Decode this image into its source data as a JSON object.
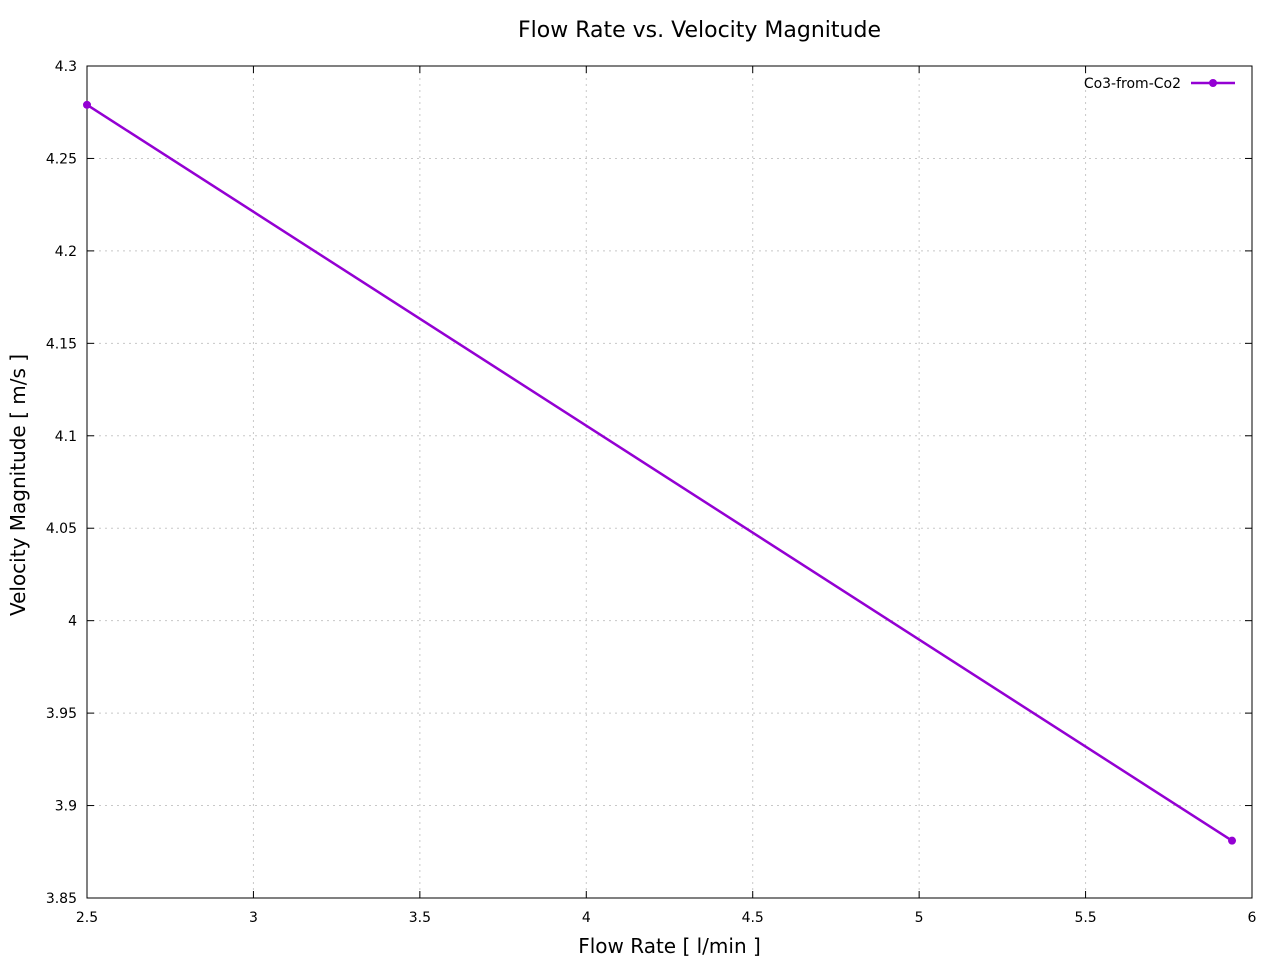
{
  "chart_data": {
    "type": "line",
    "title": "Flow Rate vs. Velocity Magnitude",
    "xlabel": "Flow Rate [ l/min ]",
    "ylabel": "Velocity Magnitude [ m/s ]",
    "xlim": [
      2.5,
      6
    ],
    "ylim": [
      3.85,
      4.3
    ],
    "x_ticks": [
      "2.5",
      "3",
      "3.5",
      "4",
      "4.5",
      "5",
      "5.5",
      "6"
    ],
    "y_ticks": [
      "3.85",
      "3.9",
      "3.95",
      "4",
      "4.05",
      "4.1",
      "4.15",
      "4.2",
      "4.25",
      "4.3"
    ],
    "grid": true,
    "legend_position": "top-right",
    "series": [
      {
        "name": "Co3-from-Co2",
        "color": "#9400d3",
        "marker": "circle",
        "points": [
          {
            "x": 2.5,
            "y": 4.279
          },
          {
            "x": 5.94,
            "y": 3.881
          }
        ]
      }
    ]
  }
}
